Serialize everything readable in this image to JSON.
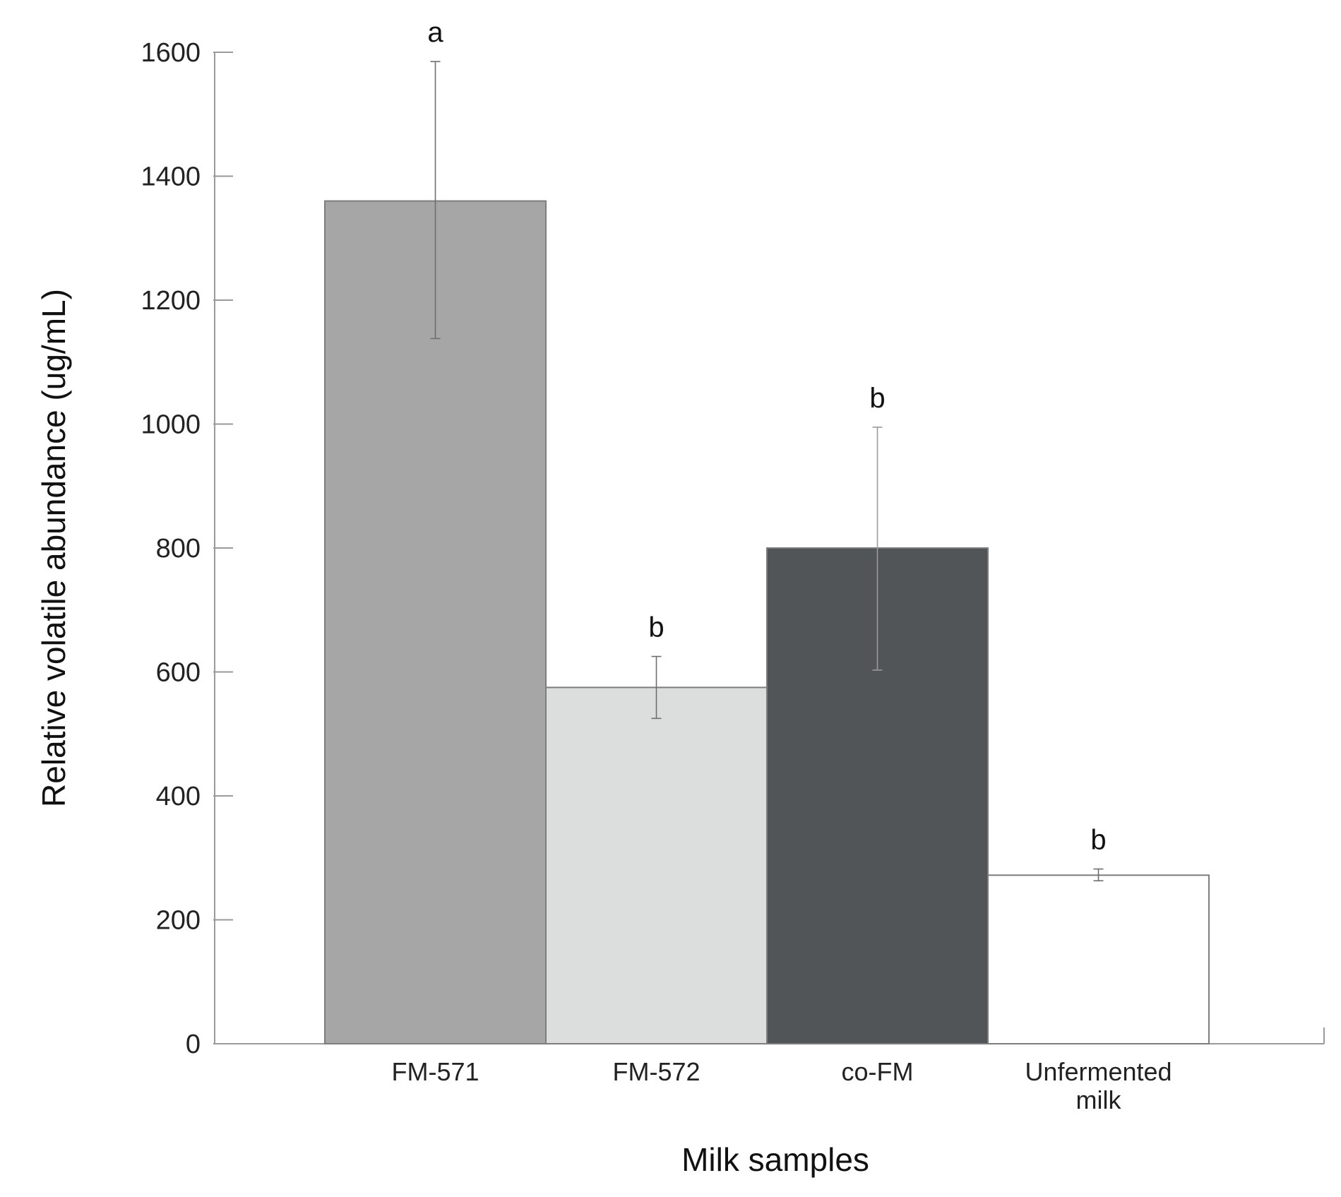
{
  "chart_data": {
    "type": "bar",
    "categories": [
      [
        "FM-571"
      ],
      [
        "FM-572"
      ],
      [
        "co-FM"
      ],
      [
        "Unfermented",
        "milk"
      ]
    ],
    "values": [
      1360,
      575,
      800,
      272
    ],
    "error_low": [
      1138,
      525,
      603,
      263
    ],
    "error_high": [
      1585,
      625,
      995,
      282
    ],
    "significance_letters": [
      "a",
      "b",
      "b",
      "b"
    ],
    "bar_colors": [
      "#a6a6a6",
      "#dcdedd",
      "#525557",
      "#ffffff"
    ],
    "xlabel": "Milk samples",
    "ylabel": "Relative volatile abundance (ug/mL)",
    "ylim": [
      0,
      1600
    ],
    "yticks": [
      0,
      200,
      400,
      600,
      800,
      1000,
      1200,
      1400,
      1600
    ],
    "grid": false,
    "legend": "none"
  }
}
